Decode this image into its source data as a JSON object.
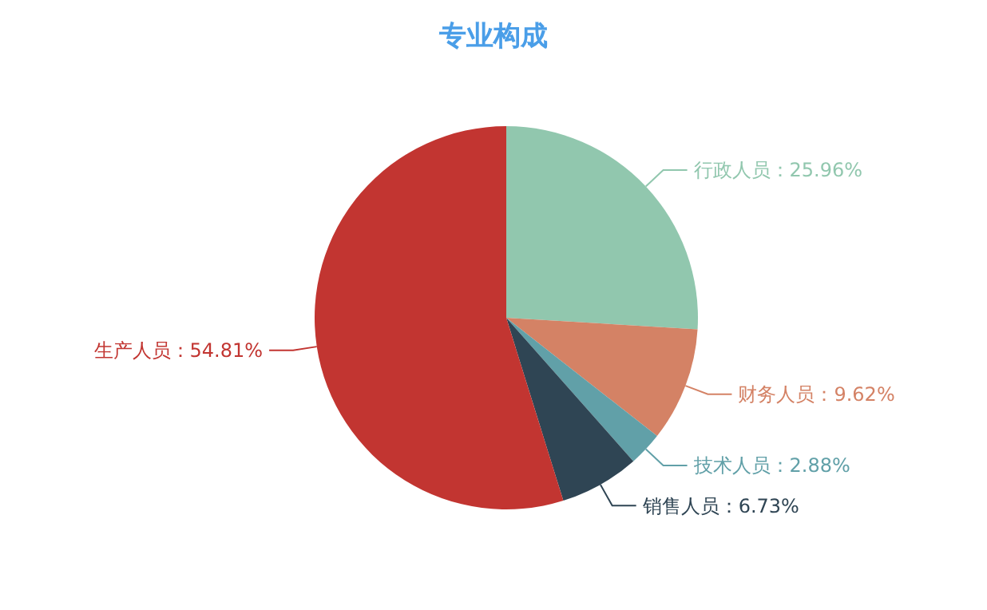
{
  "chart_data": {
    "type": "pie",
    "title": "专业构成",
    "categories": [
      "行政人员",
      "财务人员",
      "技术人员",
      "销售人员",
      "生产人员"
    ],
    "values": [
      25.96,
      9.62,
      2.88,
      6.73,
      54.81
    ],
    "value_labels": [
      "25.96%",
      "9.62%",
      "2.88%",
      "6.73%",
      "54.81%"
    ],
    "colors": [
      "#91c7ae",
      "#d48265",
      "#61a0a8",
      "#2f4554",
      "#c23531"
    ],
    "legend": false
  }
}
